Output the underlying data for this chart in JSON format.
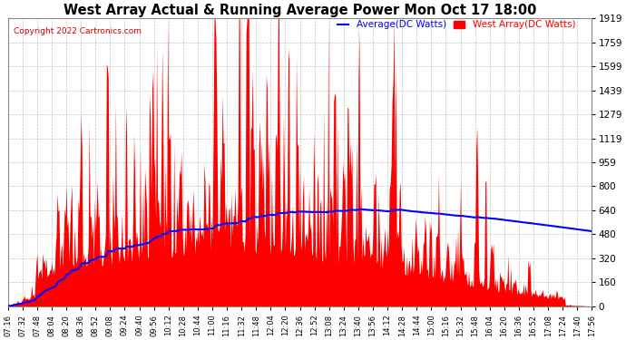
{
  "title": "West Array Actual & Running Average Power Mon Oct 17 18:00",
  "copyright": "Copyright 2022 Cartronics.com",
  "legend_avg": "Average(DC Watts)",
  "legend_west": "West Array(DC Watts)",
  "ymin": 0.0,
  "ymax": 1918.8,
  "yticks": [
    0.0,
    159.9,
    319.8,
    479.7,
    639.6,
    799.5,
    959.4,
    1119.3,
    1279.2,
    1439.1,
    1599.0,
    1758.9,
    1918.8
  ],
  "xtick_labels": [
    "07:16",
    "07:32",
    "07:48",
    "08:04",
    "08:20",
    "08:36",
    "08:52",
    "09:08",
    "09:24",
    "09:40",
    "09:56",
    "10:12",
    "10:28",
    "10:44",
    "11:00",
    "11:16",
    "11:32",
    "11:48",
    "12:04",
    "12:20",
    "12:36",
    "12:52",
    "13:08",
    "13:24",
    "13:40",
    "13:56",
    "14:12",
    "14:28",
    "14:44",
    "15:00",
    "15:16",
    "15:32",
    "15:48",
    "16:04",
    "16:20",
    "16:36",
    "16:52",
    "17:08",
    "17:24",
    "17:40",
    "17:56"
  ],
  "bar_color": "#ff0000",
  "avg_line_color": "#0000ff",
  "background_color": "#ffffff",
  "grid_color": "#aaaaaa"
}
